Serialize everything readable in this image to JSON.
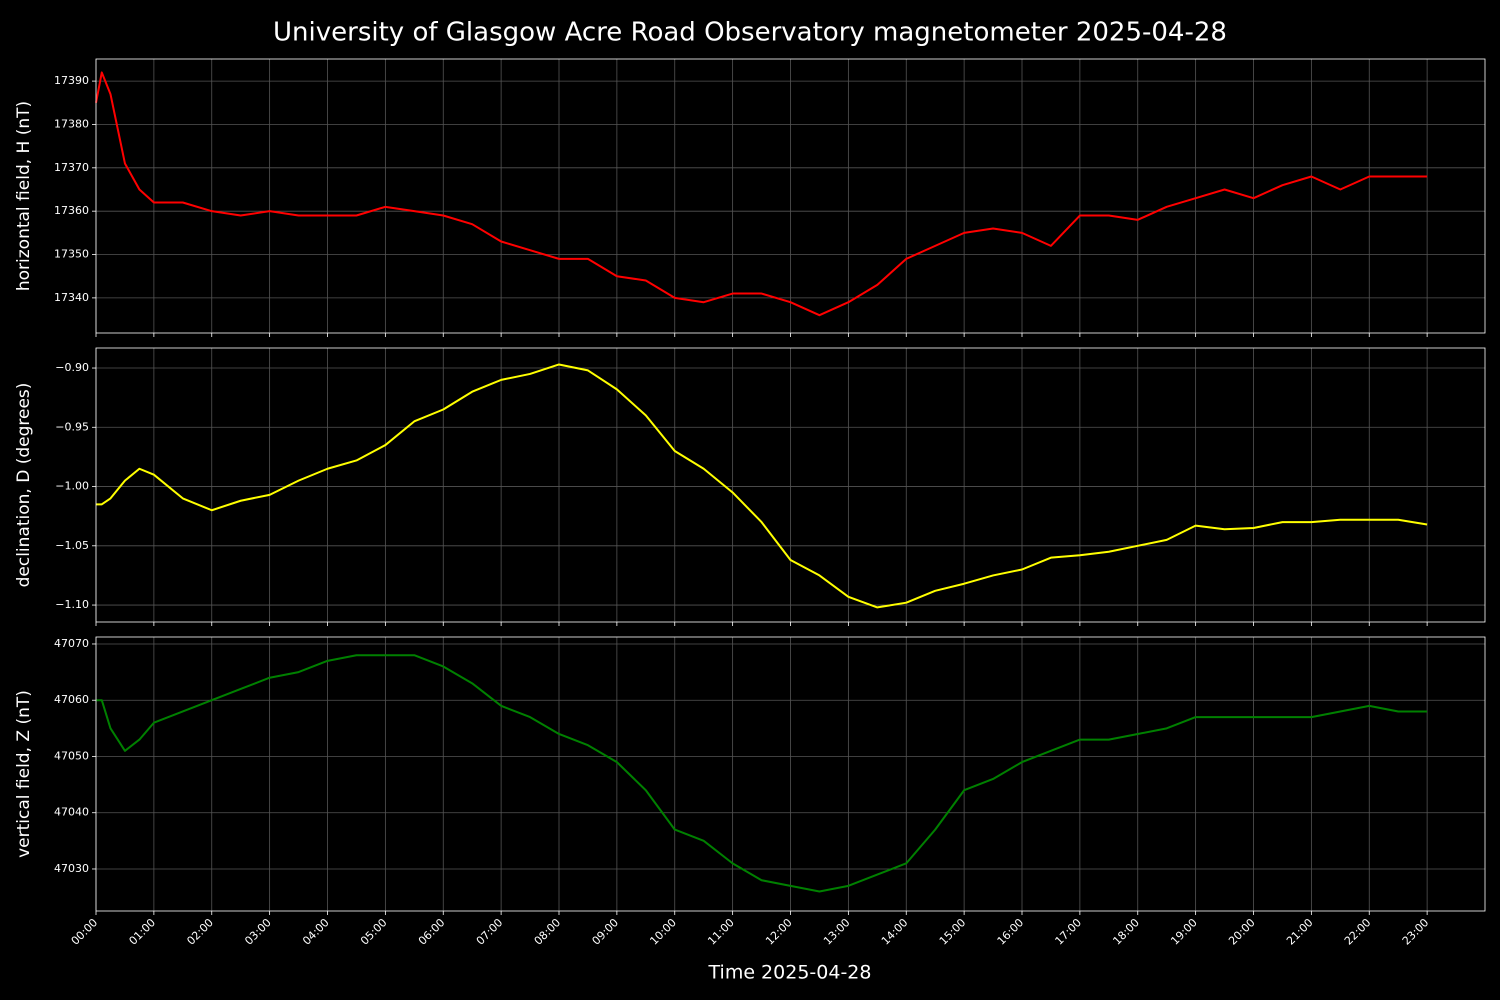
{
  "chart_data": [
    {
      "type": "line",
      "title": "University of Glasgow Acre Road Observatory magnetometer 2025-04-28",
      "ylabel": "horizontal field, H (nT)",
      "color": "#ff0000",
      "x": [
        0,
        0.1,
        0.25,
        0.5,
        0.75,
        1,
        1.5,
        2,
        2.5,
        3,
        3.5,
        4,
        4.5,
        5,
        5.5,
        6,
        6.5,
        7,
        7.5,
        8,
        8.5,
        9,
        9.5,
        10,
        10.5,
        11,
        11.5,
        12,
        12.5,
        13,
        13.5,
        14,
        14.5,
        15,
        15.5,
        16,
        16.5,
        17,
        17.5,
        18,
        18.5,
        19,
        19.5,
        20,
        20.5,
        21,
        21.5,
        22,
        22.5,
        23
      ],
      "values": [
        17385,
        17392,
        17387,
        17371,
        17365,
        17362,
        17362,
        17360,
        17359,
        17360,
        17359,
        17359,
        17359,
        17361,
        17360,
        17359,
        17357,
        17353,
        17351,
        17349,
        17349,
        17345,
        17344,
        17340,
        17339,
        17341,
        17341,
        17339,
        17336,
        17339,
        17343,
        17349,
        17352,
        17355,
        17356,
        17355,
        17352,
        17359,
        17359,
        17358,
        17361,
        17363,
        17365,
        17363,
        17366,
        17368,
        17365,
        17368,
        17368,
        17368
      ],
      "xlim": [
        0,
        24
      ],
      "ylim": [
        17331.9,
        17395.1
      ],
      "yticks": [
        17340,
        17350,
        17360,
        17370,
        17380,
        17390
      ],
      "grid": true
    },
    {
      "type": "line",
      "ylabel": "declination, D (degrees)",
      "color": "#ffff00",
      "x": [
        0,
        0.1,
        0.25,
        0.5,
        0.75,
        1,
        1.5,
        2,
        2.5,
        3,
        3.5,
        4,
        4.5,
        5,
        5.5,
        6,
        6.5,
        7,
        7.5,
        8,
        8.5,
        9,
        9.5,
        10,
        10.5,
        11,
        11.5,
        12,
        12.5,
        13,
        13.5,
        14,
        14.5,
        15,
        15.5,
        16,
        16.5,
        17,
        17.5,
        18,
        18.5,
        19,
        19.5,
        20,
        20.5,
        21,
        21.5,
        22,
        22.5,
        23
      ],
      "values": [
        -1.015,
        -1.015,
        -1.01,
        -0.995,
        -0.985,
        -0.99,
        -1.01,
        -1.02,
        -1.012,
        -1.007,
        -0.995,
        -0.985,
        -0.978,
        -0.965,
        -0.945,
        -0.935,
        -0.92,
        -0.91,
        -0.905,
        -0.897,
        -0.902,
        -0.918,
        -0.94,
        -0.97,
        -0.985,
        -1.005,
        -1.03,
        -1.062,
        -1.075,
        -1.093,
        -1.102,
        -1.098,
        -1.088,
        -1.082,
        -1.075,
        -1.07,
        -1.06,
        -1.058,
        -1.055,
        -1.05,
        -1.045,
        -1.033,
        -1.036,
        -1.035,
        -1.03,
        -1.03,
        -1.028,
        -1.028,
        -1.028,
        -1.032
      ],
      "xlim": [
        0,
        24
      ],
      "ylim": [
        -1.1143,
        -0.8831
      ],
      "yticks": [
        {
          "value": -1.1,
          "label": "−1.10"
        },
        {
          "value": -1.05,
          "label": "−1.05"
        },
        {
          "value": -1.0,
          "label": "−1.00"
        },
        {
          "value": -0.95,
          "label": "−0.95"
        },
        {
          "value": -0.9,
          "label": "−0.90"
        }
      ],
      "grid": true
    },
    {
      "type": "line",
      "ylabel": "vertical field, Z (nT)",
      "xlabel": "Time 2025-04-28",
      "color": "#008000",
      "x": [
        0,
        0.1,
        0.25,
        0.5,
        0.75,
        1,
        1.5,
        2,
        2.5,
        3,
        3.5,
        4,
        4.5,
        5,
        5.5,
        6,
        6.5,
        7,
        7.5,
        8,
        8.5,
        9,
        9.5,
        10,
        10.5,
        11,
        11.5,
        12,
        12.5,
        13,
        13.5,
        14,
        14.5,
        15,
        15.5,
        16,
        16.5,
        17,
        17.5,
        18,
        18.5,
        19,
        19.5,
        20,
        20.5,
        21,
        21.5,
        22,
        22.5,
        23
      ],
      "values": [
        47060,
        47060,
        47055,
        47051,
        47053,
        47056,
        47058,
        47060,
        47062,
        47064,
        47065,
        47067,
        47068,
        47068,
        47068,
        47066,
        47063,
        47059,
        47057,
        47054,
        47052,
        47049,
        47044,
        47037,
        47035,
        47031,
        47028,
        47027,
        47026,
        47027,
        47029,
        47031,
        47037,
        47044,
        47046,
        47049,
        47051,
        47053,
        47053,
        47054,
        47055,
        47057,
        47057,
        47057,
        47057,
        47057,
        47058,
        47059,
        47058,
        47058
      ],
      "xlim": [
        0,
        24
      ],
      "ylim": [
        47022.53,
        47071.24
      ],
      "yticks": [
        47030,
        47040,
        47050,
        47060,
        47070
      ],
      "xticks": [
        {
          "value": 0,
          "label": "00:00"
        },
        {
          "value": 1,
          "label": "01:00"
        },
        {
          "value": 2,
          "label": "02:00"
        },
        {
          "value": 3,
          "label": "03:00"
        },
        {
          "value": 4,
          "label": "04:00"
        },
        {
          "value": 5,
          "label": "05:00"
        },
        {
          "value": 6,
          "label": "06:00"
        },
        {
          "value": 7,
          "label": "07:00"
        },
        {
          "value": 8,
          "label": "08:00"
        },
        {
          "value": 9,
          "label": "09:00"
        },
        {
          "value": 10,
          "label": "10:00"
        },
        {
          "value": 11,
          "label": "11:00"
        },
        {
          "value": 12,
          "label": "12:00"
        },
        {
          "value": 13,
          "label": "13:00"
        },
        {
          "value": 14,
          "label": "14:00"
        },
        {
          "value": 15,
          "label": "15:00"
        },
        {
          "value": 16,
          "label": "16:00"
        },
        {
          "value": 17,
          "label": "17:00"
        },
        {
          "value": 18,
          "label": "18:00"
        },
        {
          "value": 19,
          "label": "19:00"
        },
        {
          "value": 20,
          "label": "20:00"
        },
        {
          "value": 21,
          "label": "21:00"
        },
        {
          "value": 22,
          "label": "22:00"
        },
        {
          "value": 23,
          "label": "23:00"
        }
      ],
      "grid": true
    }
  ]
}
